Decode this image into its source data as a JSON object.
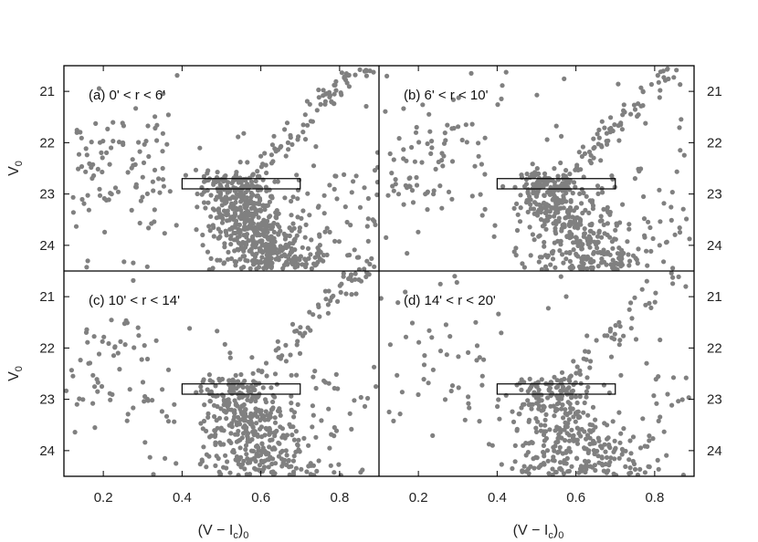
{
  "chart_data": {
    "type": "scatter",
    "layout": "2x2 panels sharing axes",
    "xlabel": "(V - Ic)0",
    "ylabel": "V0",
    "xlim": [
      0.1,
      0.9
    ],
    "ylim": [
      24.5,
      20.5
    ],
    "y_inverted": true,
    "x_ticks": [
      "0.2",
      "0.4",
      "0.6",
      "0.8"
    ],
    "y_ticks": [
      "21",
      "22",
      "23",
      "24"
    ],
    "marker_color": "#808080",
    "box": {
      "x": [
        0.4,
        0.7
      ],
      "y": [
        22.7,
        22.9
      ]
    },
    "panels": [
      {
        "label": "(a) 0' < r < 6'",
        "n_points": 900
      },
      {
        "label": "(b) 6' < r < 10'",
        "n_points": 700
      },
      {
        "label": "(c) 10' < r < 14'",
        "n_points": 620
      },
      {
        "label": "(d) 14' < r < 20'",
        "n_points": 520
      }
    ]
  }
}
